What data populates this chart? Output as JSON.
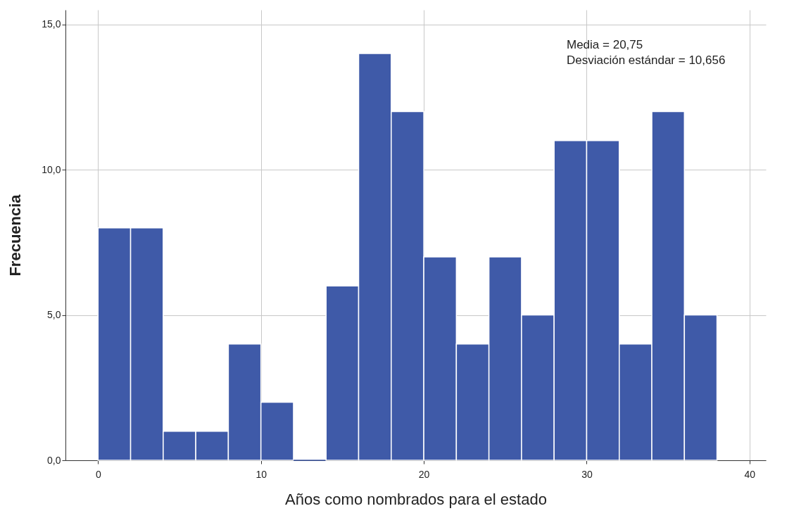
{
  "chart_data": {
    "type": "histogram",
    "xlabel": "Años como nombrados para el estado",
    "ylabel": "Frecuencia",
    "bins": [
      0,
      2,
      4,
      6,
      8,
      10,
      12,
      14,
      16,
      18,
      20,
      22,
      24,
      26,
      28,
      30,
      32,
      34,
      36,
      38
    ],
    "values": [
      8,
      8,
      1,
      1,
      4,
      2,
      0,
      6,
      14,
      12,
      7,
      4,
      7,
      5,
      11,
      11,
      4,
      12,
      5
    ],
    "color": "#3f5aa8",
    "xlim": [
      -2,
      41
    ],
    "xticks": [
      0,
      10,
      20,
      30,
      40
    ],
    "ylim": [
      0,
      15.5
    ],
    "yticks": [
      {
        "value": 0,
        "label": "0,0"
      },
      {
        "value": 5,
        "label": "5,0"
      },
      {
        "value": 10,
        "label": "10,0"
      },
      {
        "value": 15,
        "label": "15,0"
      }
    ],
    "grid": true,
    "annotations": [
      "Media = 20,75",
      "Desviación estándar = 10,656"
    ]
  }
}
